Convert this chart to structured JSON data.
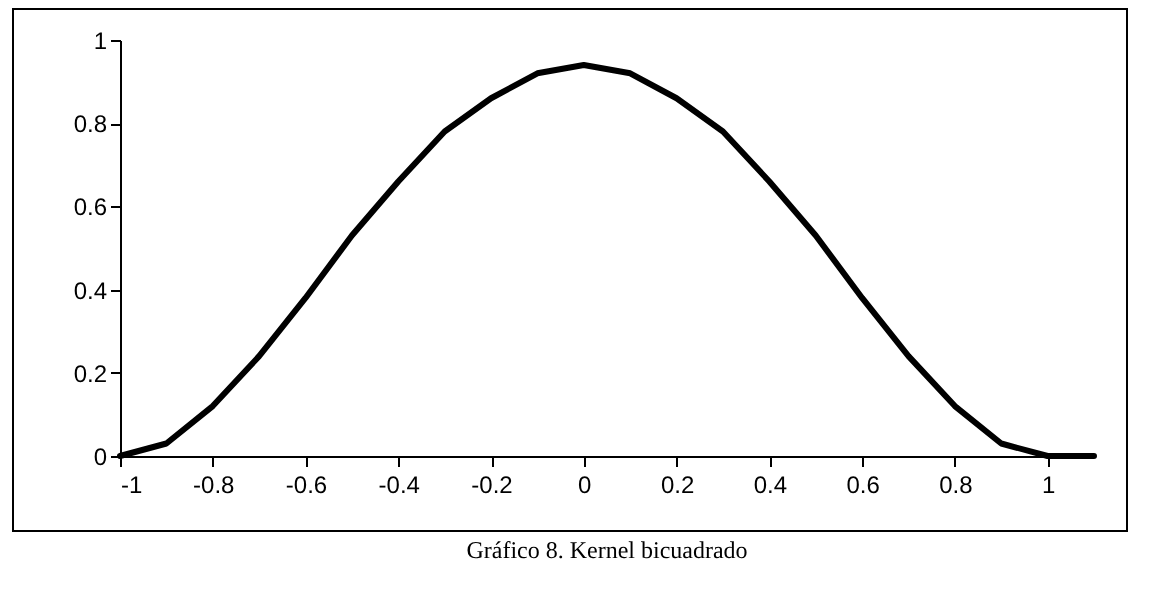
{
  "chart_data": {
    "type": "line",
    "x": [
      -1,
      -0.9,
      -0.8,
      -0.7,
      -0.6,
      -0.5,
      -0.4,
      -0.3,
      -0.2,
      -0.1,
      0,
      0.1,
      0.2,
      0.3,
      0.4,
      0.5,
      0.6,
      0.7,
      0.8,
      0.9,
      1,
      1.1
    ],
    "series": [
      {
        "color": "#000000",
        "values": [
          0,
          0.03,
          0.12,
          0.24,
          0.38,
          0.53,
          0.66,
          0.78,
          0.86,
          0.92,
          0.94,
          0.92,
          0.86,
          0.78,
          0.66,
          0.53,
          0.38,
          0.24,
          0.12,
          0.03,
          0,
          0
        ]
      }
    ],
    "xlim": [
      -1,
      1.1
    ],
    "xticks": [
      -1,
      -0.8,
      -0.6,
      -0.4,
      -0.2,
      0,
      0.2,
      0.4,
      0.6,
      0.8,
      1
    ],
    "ylim": [
      0,
      1
    ],
    "yticks": [
      0,
      0.2,
      0.4,
      0.6,
      0.8,
      1
    ],
    "grid": false,
    "legend": false,
    "marker": "none",
    "line_style": "solid",
    "annotations": [
      "Gráfico 8.  Kernel bicuadrado"
    ]
  }
}
